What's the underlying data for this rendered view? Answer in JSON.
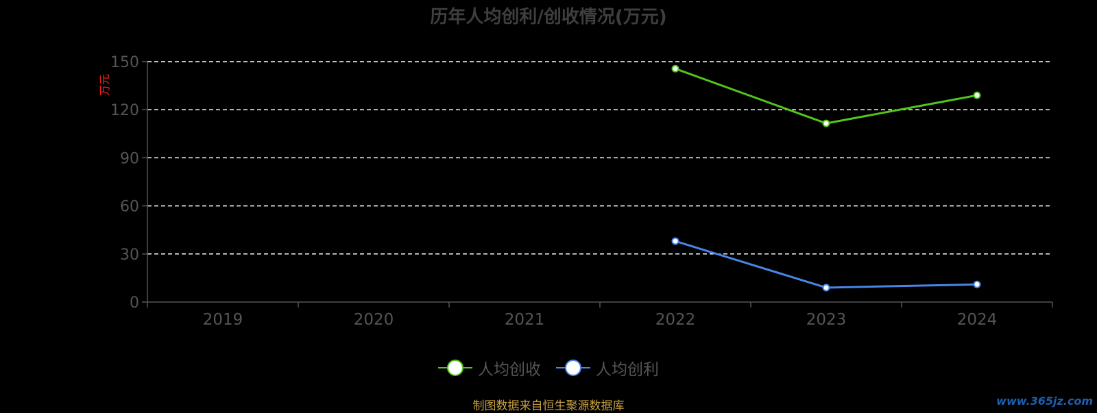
{
  "title": "历年人均创利/创收情况(万元)",
  "source_note": "制图数据来自恒生聚源数据库",
  "watermark": "www.365jz.com",
  "colors": {
    "revenue": "#52c41a",
    "profit": "#4a86e8",
    "background": "#000000",
    "unit_label": "#ff2020",
    "axis_text": "#555555"
  },
  "chart_data": {
    "type": "line",
    "categories": [
      "2019",
      "2020",
      "2021",
      "2022",
      "2023",
      "2024"
    ],
    "ylabel": "万元",
    "ylim": [
      0,
      150
    ],
    "yticks": [
      0,
      30,
      60,
      90,
      120,
      150
    ],
    "grid": true,
    "legend_position": "bottom",
    "series": [
      {
        "name": "人均创收",
        "color": "#52c41a",
        "values": [
          null,
          null,
          null,
          145.6,
          111.5,
          129.0
        ]
      },
      {
        "name": "人均创利",
        "color": "#4a86e8",
        "values": [
          null,
          null,
          null,
          38.0,
          9.0,
          11.0
        ]
      }
    ]
  }
}
